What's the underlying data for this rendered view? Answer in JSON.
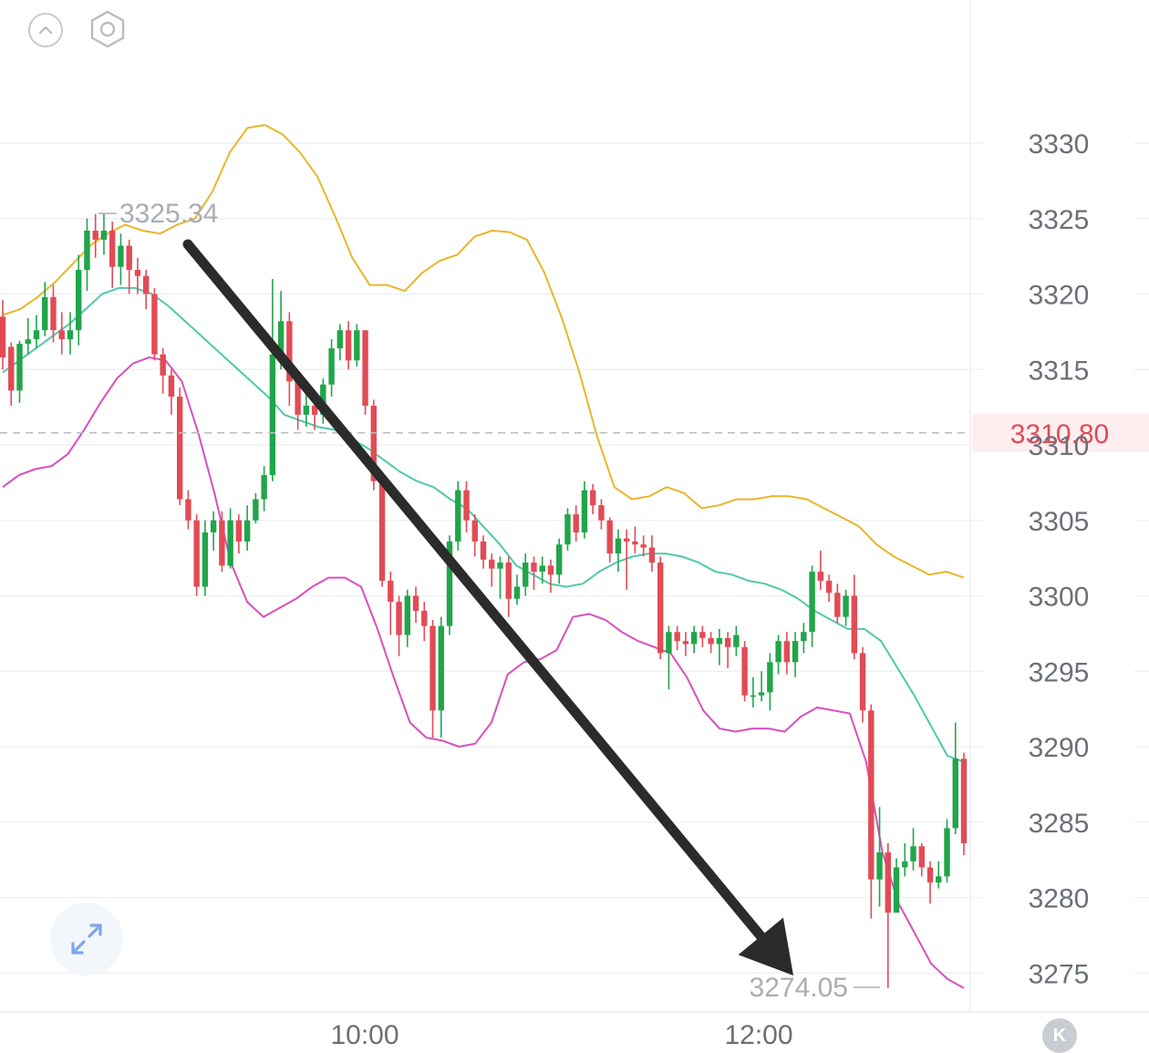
{
  "chart_data": {
    "type": "candlestick",
    "y_ticks": [
      "3330",
      "3325",
      "3320",
      "3315",
      "3310",
      "3305",
      "3300",
      "3295",
      "3290",
      "3285",
      "3280",
      "3275"
    ],
    "ylim": [
      3271,
      3338
    ],
    "x_ticks": [
      "10:00",
      "12:00"
    ],
    "current_price": "3310.80",
    "high_label": "3325.34",
    "low_label": "3274.05",
    "colors": {
      "up": "#21a54a",
      "down": "#e24b56",
      "upper_band": "#e9b52a",
      "middle_band": "#4fc9a9",
      "lower_band": "#d94fbd",
      "arrow": "#2b2b2b",
      "grid": "#eef1f4"
    },
    "candles": [
      [
        3318.5,
        3315.8,
        3319.6,
        3315.0
      ],
      [
        3316.5,
        3313.6,
        3316.8,
        3312.6
      ],
      [
        3313.6,
        3316.7,
        3316.9,
        3312.8
      ],
      [
        3316.7,
        3317.0,
        3318.4,
        3316.0
      ],
      [
        3317.0,
        3317.6,
        3318.6,
        3316.4
      ],
      [
        3317.6,
        3319.8,
        3320.8,
        3317.2
      ],
      [
        3319.8,
        3317.6,
        3320.6,
        3316.8
      ],
      [
        3317.6,
        3317.0,
        3318.8,
        3316.0
      ],
      [
        3317.0,
        3317.6,
        3318.8,
        3316.0
      ],
      [
        3317.6,
        3321.6,
        3322.6,
        3316.6
      ],
      [
        3321.6,
        3324.2,
        3325.0,
        3320.2
      ],
      [
        3324.2,
        3323.6,
        3325.3,
        3322.4
      ],
      [
        3323.6,
        3324.2,
        3325.3,
        3322.6
      ],
      [
        3324.2,
        3321.8,
        3324.8,
        3320.4
      ],
      [
        3321.8,
        3323.2,
        3324.0,
        3320.6
      ],
      [
        3323.2,
        3321.6,
        3323.6,
        3320.0
      ],
      [
        3321.6,
        3321.2,
        3322.4,
        3320.0
      ],
      [
        3321.2,
        3320.0,
        3321.6,
        3319.0
      ],
      [
        3320.0,
        3316.0,
        3320.4,
        3315.6
      ],
      [
        3316.0,
        3314.6,
        3316.4,
        3313.4
      ],
      [
        3314.6,
        3313.2,
        3315.0,
        3312.0
      ],
      [
        3313.2,
        3306.4,
        3313.8,
        3306.0
      ],
      [
        3306.4,
        3305.0,
        3307.0,
        3304.4
      ],
      [
        3305.0,
        3300.6,
        3305.4,
        3300.0
      ],
      [
        3300.6,
        3304.2,
        3305.0,
        3300.0
      ],
      [
        3304.2,
        3305.0,
        3305.6,
        3303.0
      ],
      [
        3305.0,
        3302.0,
        3305.6,
        3301.6
      ],
      [
        3302.0,
        3305.0,
        3305.8,
        3301.8
      ],
      [
        3305.0,
        3303.6,
        3305.4,
        3302.8
      ],
      [
        3303.6,
        3305.0,
        3306.0,
        3303.0
      ],
      [
        3305.0,
        3306.4,
        3306.8,
        3304.8
      ],
      [
        3306.4,
        3308.0,
        3308.6,
        3305.6
      ],
      [
        3308.0,
        3316.0,
        3321.0,
        3307.6
      ],
      [
        3316.0,
        3318.2,
        3320.2,
        3315.0
      ],
      [
        3318.2,
        3314.2,
        3318.8,
        3312.6
      ],
      [
        3314.2,
        3312.0,
        3314.8,
        3311.0
      ],
      [
        3312.0,
        3312.6,
        3313.4,
        3311.2
      ],
      [
        3312.6,
        3312.0,
        3313.6,
        3311.0
      ],
      [
        3312.0,
        3314.0,
        3314.4,
        3311.4
      ],
      [
        3314.0,
        3316.4,
        3317.0,
        3313.2
      ],
      [
        3316.4,
        3317.6,
        3318.0,
        3315.6
      ],
      [
        3317.6,
        3315.6,
        3318.2,
        3315.0
      ],
      [
        3315.6,
        3317.6,
        3318.0,
        3315.2
      ],
      [
        3317.6,
        3312.6,
        3317.6,
        3312.0
      ],
      [
        3312.6,
        3307.6,
        3313.0,
        3307.0
      ],
      [
        3307.6,
        3301.0,
        3308.2,
        3300.6
      ],
      [
        3301.0,
        3299.6,
        3301.6,
        3297.4
      ],
      [
        3299.6,
        3297.4,
        3300.0,
        3296.0
      ],
      [
        3297.4,
        3300.0,
        3300.4,
        3296.6
      ],
      [
        3300.0,
        3299.0,
        3300.6,
        3298.2
      ],
      [
        3299.0,
        3298.0,
        3299.6,
        3297.0
      ],
      [
        3298.0,
        3292.4,
        3298.4,
        3290.6
      ],
      [
        3292.4,
        3298.0,
        3298.6,
        3290.6
      ],
      [
        3298.0,
        3303.6,
        3304.0,
        3297.4
      ],
      [
        3303.6,
        3307.0,
        3307.6,
        3303.0
      ],
      [
        3307.0,
        3305.0,
        3307.6,
        3304.2
      ],
      [
        3305.0,
        3303.6,
        3305.4,
        3302.6
      ],
      [
        3303.6,
        3302.4,
        3304.0,
        3301.8
      ],
      [
        3302.4,
        3301.8,
        3302.8,
        3300.6
      ],
      [
        3301.8,
        3302.2,
        3302.6,
        3299.8
      ],
      [
        3302.2,
        3299.8,
        3302.6,
        3298.6
      ],
      [
        3299.8,
        3300.6,
        3301.4,
        3299.4
      ],
      [
        3300.6,
        3302.2,
        3302.8,
        3300.0
      ],
      [
        3302.2,
        3301.6,
        3302.6,
        3300.4
      ],
      [
        3301.6,
        3302.0,
        3302.6,
        3300.8
      ],
      [
        3302.0,
        3301.4,
        3302.4,
        3300.2
      ],
      [
        3301.4,
        3303.4,
        3303.8,
        3300.8
      ],
      [
        3303.4,
        3305.4,
        3305.8,
        3303.0
      ],
      [
        3305.4,
        3304.2,
        3306.0,
        3303.6
      ],
      [
        3304.2,
        3307.0,
        3307.6,
        3303.8
      ],
      [
        3307.0,
        3306.0,
        3307.4,
        3305.4
      ],
      [
        3306.0,
        3305.0,
        3306.4,
        3304.4
      ],
      [
        3305.0,
        3302.8,
        3305.2,
        3302.2
      ],
      [
        3302.8,
        3303.8,
        3304.4,
        3301.6
      ],
      [
        3303.8,
        3303.6,
        3304.4,
        3300.4
      ],
      [
        3303.6,
        3303.4,
        3304.6,
        3302.8
      ],
      [
        3303.4,
        3303.2,
        3304.0,
        3302.6
      ],
      [
        3303.2,
        3302.2,
        3304.0,
        3301.6
      ],
      [
        3302.2,
        3296.2,
        3302.6,
        3295.8
      ],
      [
        3296.2,
        3297.6,
        3298.0,
        3293.8
      ],
      [
        3297.6,
        3297.0,
        3298.0,
        3296.4
      ],
      [
        3297.0,
        3296.8,
        3297.6,
        3296.0
      ],
      [
        3296.8,
        3297.6,
        3298.0,
        3296.2
      ],
      [
        3297.6,
        3297.2,
        3298.0,
        3296.6
      ],
      [
        3297.2,
        3296.8,
        3297.6,
        3296.2
      ],
      [
        3296.8,
        3297.2,
        3297.8,
        3295.4
      ],
      [
        3297.2,
        3296.6,
        3297.6,
        3295.2
      ],
      [
        3296.6,
        3297.4,
        3298.0,
        3296.0
      ],
      [
        3296.6,
        3293.4,
        3297.0,
        3293.0
      ],
      [
        3293.4,
        3293.4,
        3294.6,
        3292.6
      ],
      [
        3293.4,
        3293.6,
        3295.0,
        3293.0
      ],
      [
        3293.6,
        3295.6,
        3296.2,
        3292.4
      ],
      [
        3295.6,
        3297.0,
        3297.4,
        3294.8
      ],
      [
        3297.0,
        3295.6,
        3297.6,
        3294.8
      ],
      [
        3295.6,
        3297.0,
        3297.6,
        3294.6
      ],
      [
        3297.0,
        3297.6,
        3298.2,
        3296.2
      ],
      [
        3297.6,
        3301.6,
        3302.0,
        3296.6
      ],
      [
        3301.6,
        3301.0,
        3303.0,
        3300.4
      ],
      [
        3301.0,
        3300.2,
        3301.4,
        3299.6
      ],
      [
        3300.2,
        3298.6,
        3300.8,
        3298.2
      ],
      [
        3298.6,
        3300.0,
        3300.4,
        3298.0
      ],
      [
        3300.0,
        3296.2,
        3301.4,
        3295.8
      ],
      [
        3296.2,
        3292.4,
        3296.6,
        3291.6
      ],
      [
        3292.4,
        3281.2,
        3292.8,
        3278.6
      ],
      [
        3281.2,
        3283.0,
        3286.0,
        3279.4
      ],
      [
        3283.0,
        3279.0,
        3283.6,
        3274.0
      ],
      [
        3279.0,
        3282.0,
        3282.6,
        3279.0
      ],
      [
        3282.0,
        3282.4,
        3283.6,
        3281.4
      ],
      [
        3282.4,
        3283.4,
        3284.6,
        3281.8
      ],
      [
        3283.4,
        3282.0,
        3283.6,
        3281.4
      ],
      [
        3282.0,
        3281.0,
        3282.4,
        3279.6
      ],
      [
        3281.0,
        3281.4,
        3282.4,
        3280.6
      ],
      [
        3281.4,
        3284.6,
        3285.2,
        3281.0
      ],
      [
        3284.6,
        3289.2,
        3291.6,
        3284.2
      ],
      [
        3289.2,
        3283.6,
        3289.6,
        3282.8
      ]
    ],
    "upper_band": [
      3318.6,
      3319.0,
      3319.8,
      3320.8,
      3322.0,
      3323.2,
      3324.0,
      3324.6,
      3324.2,
      3324.0,
      3324.6,
      3325.0,
      3326.8,
      3329.4,
      3331.0,
      3331.2,
      3330.6,
      3329.4,
      3327.8,
      3325.2,
      3322.4,
      3320.6,
      3320.6,
      3320.2,
      3321.4,
      3322.2,
      3322.6,
      3323.8,
      3324.2,
      3324.1,
      3323.6,
      3321.4,
      3318.4,
      3314.8,
      3310.6,
      3307.2,
      3306.4,
      3306.6,
      3307.2,
      3306.8,
      3305.8,
      3306.0,
      3306.4,
      3306.4,
      3306.6,
      3306.6,
      3306.4,
      3305.8,
      3305.2,
      3304.6,
      3303.4,
      3302.6,
      3302.0,
      3301.4,
      3301.6,
      3301.2
    ],
    "middle_band": [
      3314.8,
      3315.6,
      3316.4,
      3317.2,
      3318.0,
      3319.0,
      3320.0,
      3320.4,
      3320.4,
      3320.0,
      3319.2,
      3318.2,
      3317.2,
      3316.2,
      3315.2,
      3314.2,
      3313.2,
      3312.0,
      3311.6,
      3311.2,
      3311.0,
      3310.4,
      3309.8,
      3309.0,
      3308.2,
      3307.6,
      3307.2,
      3306.4,
      3305.8,
      3304.6,
      3303.4,
      3302.0,
      3301.4,
      3300.8,
      3300.6,
      3300.8,
      3301.6,
      3302.2,
      3302.6,
      3302.8,
      3302.8,
      3302.6,
      3302.2,
      3301.6,
      3301.4,
      3301.0,
      3300.8,
      3300.4,
      3299.8,
      3299.0,
      3298.4,
      3297.8,
      3297.8,
      3297.0,
      3295.2,
      3293.4,
      3291.4,
      3289.4,
      3289.0
    ],
    "lower_band": [
      3307.2,
      3308.0,
      3308.4,
      3308.6,
      3309.4,
      3311.0,
      3312.8,
      3314.4,
      3315.4,
      3315.8,
      3315.6,
      3314.2,
      3310.8,
      3306.8,
      3302.2,
      3299.6,
      3298.6,
      3299.2,
      3299.8,
      3300.6,
      3301.2,
      3301.2,
      3300.6,
      3297.8,
      3294.6,
      3291.6,
      3290.6,
      3290.4,
      3290.0,
      3290.2,
      3291.6,
      3294.8,
      3295.6,
      3295.8,
      3296.4,
      3298.6,
      3298.8,
      3298.4,
      3297.6,
      3297.0,
      3296.6,
      3296.2,
      3294.6,
      3292.4,
      3291.2,
      3291.0,
      3291.2,
      3291.2,
      3291.0,
      3292.0,
      3292.6,
      3292.4,
      3292.2,
      3289.0,
      3283.0,
      3279.6,
      3277.6,
      3275.6,
      3274.6,
      3274.0
    ]
  },
  "toolbar": {
    "collapse_icon": "chevron-up-icon",
    "settings_icon": "settings-hex-icon",
    "expand_icon": "expand-arrows-icon",
    "k_label": "K"
  }
}
